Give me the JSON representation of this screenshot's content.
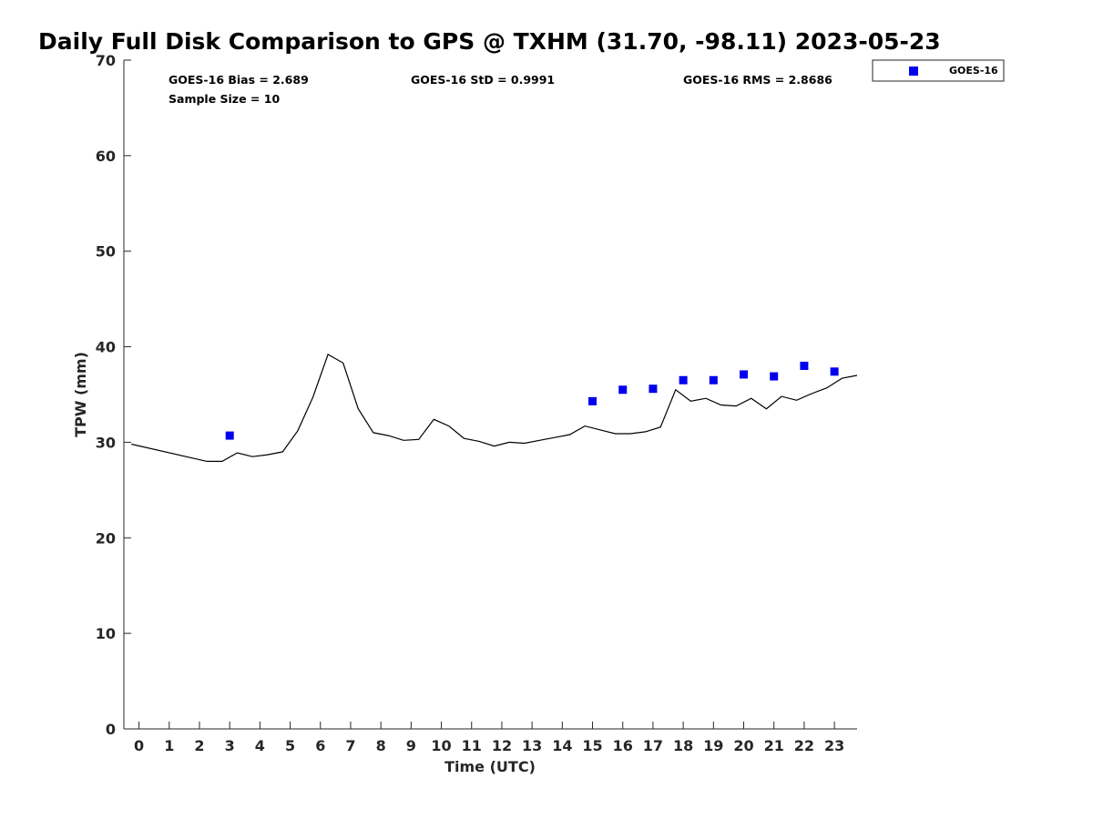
{
  "chart_data": {
    "type": "scatter",
    "title": "Daily Full Disk Comparison to GPS @ TXHM (31.70, -98.11) 2023-05-23",
    "xlabel": "Time (UTC)",
    "ylabel": "TPW (mm)",
    "xlim": [
      -0.5,
      23.75
    ],
    "ylim": [
      0,
      70
    ],
    "x_ticks": [
      0,
      1,
      2,
      3,
      4,
      5,
      6,
      7,
      8,
      9,
      10,
      11,
      12,
      13,
      14,
      15,
      16,
      17,
      18,
      19,
      20,
      21,
      22,
      23
    ],
    "y_ticks": [
      0,
      10,
      20,
      30,
      40,
      50,
      60,
      70
    ],
    "grid": false,
    "legend_position": "top-right",
    "stats": {
      "bias": "GOES-16 Bias = 2.689",
      "std": "GOES-16 StD = 0.9991",
      "rms": "GOES-16 RMS = 2.8686",
      "sample_size": "Sample Size = 10"
    },
    "series": [
      {
        "name": "GOES-16",
        "kind": "scatter",
        "color": "#0000ee",
        "x": [
          3,
          15,
          16,
          17,
          18,
          19,
          20,
          21,
          22,
          23
        ],
        "y": [
          30.7,
          34.3,
          35.5,
          35.6,
          36.5,
          36.5,
          37.1,
          36.9,
          38.0,
          37.4
        ]
      },
      {
        "kind": "line",
        "color": "#000000",
        "x": [
          -0.25,
          2.25,
          2.75,
          3.25,
          3.75,
          4.25,
          4.75,
          5.25,
          5.75,
          6.25,
          6.75,
          7.25,
          7.75,
          8.25,
          8.75,
          9.25,
          9.75,
          10.25,
          10.75,
          11.25,
          11.75,
          12.25,
          12.75,
          13.25,
          13.75,
          14.25,
          14.75,
          15.25,
          15.75,
          16.25,
          16.75,
          17.25,
          17.75,
          18.25,
          18.75,
          19.25,
          19.75,
          20.25,
          20.75,
          21.25,
          21.75,
          22.25,
          22.75,
          23.25,
          23.75
        ],
        "y": [
          29.8,
          28.0,
          28.0,
          28.9,
          28.5,
          28.7,
          29.0,
          31.2,
          34.7,
          39.2,
          38.3,
          33.5,
          31.0,
          30.7,
          30.2,
          30.3,
          32.4,
          31.7,
          30.4,
          30.1,
          29.6,
          30.0,
          29.9,
          30.2,
          30.5,
          30.8,
          31.7,
          31.3,
          30.9,
          30.9,
          31.1,
          31.6,
          35.5,
          34.3,
          34.6,
          33.9,
          33.8,
          34.6,
          33.5,
          34.8,
          34.4,
          35.1,
          35.7,
          36.7,
          37.0
        ]
      }
    ]
  }
}
